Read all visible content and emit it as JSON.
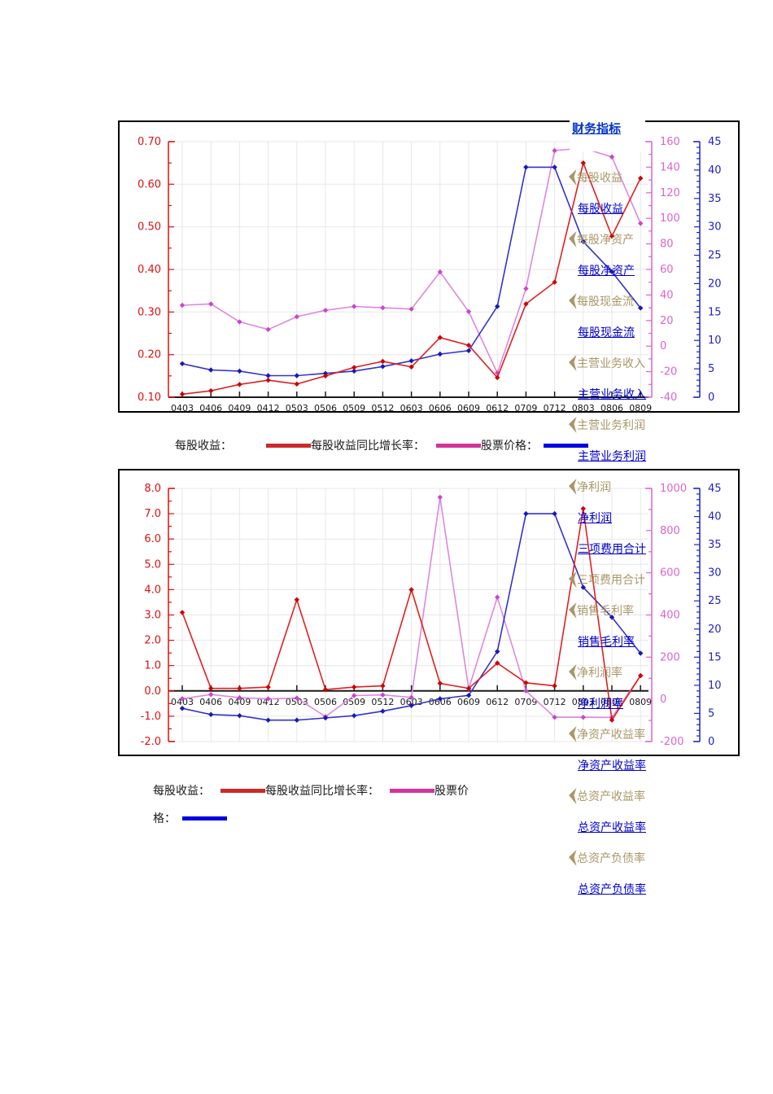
{
  "menu": {
    "title": "财务指标",
    "items": [
      {
        "label": "每股收益",
        "variant": "tan"
      },
      {
        "label": "每股收益",
        "variant": "link"
      },
      {
        "label": "每股净资产",
        "variant": "tan"
      },
      {
        "label": "每股净资产",
        "variant": "link"
      },
      {
        "label": "每股现金流",
        "variant": "tan"
      },
      {
        "label": "每股现金流",
        "variant": "link"
      },
      {
        "label": "主营业务收入",
        "variant": "tan"
      },
      {
        "label": "主营业务收入",
        "variant": "link"
      },
      {
        "label": "主营业务利润",
        "variant": "tan"
      },
      {
        "label": "主营业务利润",
        "variant": "link"
      },
      {
        "label": "净利润",
        "variant": "tan"
      },
      {
        "label": "净利润",
        "variant": "link"
      },
      {
        "label": "三项费用合计",
        "variant": "link"
      },
      {
        "label": "三项费用合计",
        "variant": "tan"
      },
      {
        "label": "销售毛利率",
        "variant": "tan"
      },
      {
        "label": "销售毛利率",
        "variant": "link"
      },
      {
        "label": "净利润率",
        "variant": "tan"
      },
      {
        "label": "净利润率",
        "variant": "link"
      },
      {
        "label": "净资产收益率",
        "variant": "tan"
      },
      {
        "label": "净资产收益率",
        "variant": "link"
      },
      {
        "label": "总资产收益率",
        "variant": "tan"
      },
      {
        "label": "总资产收益率",
        "variant": "link"
      },
      {
        "label": "总资产负债率",
        "variant": "tan"
      },
      {
        "label": "总资产负债率",
        "variant": "link"
      }
    ],
    "tan_color": "#a99767",
    "link_color": "#0000cc"
  },
  "legend1": {
    "segments": [
      {
        "t": "每股收益："
      },
      {
        "c": "#cc2929",
        "gap": 42
      },
      {
        "t": "每股收益同比增长率："
      },
      {
        "c": "#d4339c",
        "gap": 14
      },
      {
        "t": "股票价格："
      },
      {
        "c": "#0000e0",
        "gap": 7
      }
    ]
  },
  "legend2_line1": {
    "segments": [
      {
        "t": "每股收益："
      },
      {
        "c": "#cc2929",
        "gap": 13
      },
      {
        "t": "每股收益同比增长率："
      },
      {
        "c": "#d4339c",
        "gap": 13
      },
      {
        "t": "股票价"
      }
    ]
  },
  "legend2_line2": {
    "segments": [
      {
        "t": "格："
      },
      {
        "c": "#0000e0",
        "gap": 8
      }
    ]
  },
  "chart_data": [
    {
      "type": "line",
      "title": "",
      "grid": "#e7e7e7",
      "baseline": 0.1,
      "categories": [
        "0403",
        "0406",
        "0409",
        "0412",
        "0503",
        "0506",
        "0509",
        "0512",
        "0603",
        "0606",
        "0609",
        "0612",
        "0709",
        "0712",
        "0803",
        "0806",
        "0809"
      ],
      "axes": {
        "left": {
          "min": 0.1,
          "max": 0.7,
          "step": 0.1,
          "minor": 2,
          "decimals": 2,
          "color": "#dd1111",
          "label": "每股收益"
        },
        "pink": {
          "min": -40,
          "max": 160,
          "step": 20,
          "minor": 2,
          "decimals": 0,
          "color": "#d966cc",
          "label": "每股收益同比增长率"
        },
        "blue": {
          "min": 0,
          "max": 45,
          "step": 5,
          "minor": 5,
          "decimals": 0,
          "color": "#2222cc",
          "label": "股票价格"
        }
      },
      "series": [
        {
          "id": "growth",
          "name": "每股收益同比增长率",
          "axis": "pink",
          "color": "#dd88dd",
          "marker": "#cc44cc",
          "values": [
            32,
            33,
            19,
            13,
            23,
            28,
            31,
            30,
            29,
            58,
            27,
            -21,
            45,
            153,
            155,
            148,
            96
          ]
        },
        {
          "id": "price",
          "name": "股票价格",
          "axis": "blue",
          "color": "#3333cc",
          "marker": "#1818bb",
          "values": [
            5.9,
            4.8,
            4.6,
            3.8,
            3.8,
            4.2,
            4.6,
            5.4,
            6.4,
            7.6,
            8.2,
            16.0,
            40.5,
            40.5,
            27.4,
            22.1,
            15.7
          ]
        },
        {
          "id": "eps",
          "name": "每股收益",
          "axis": "left",
          "color": "#e02020",
          "marker": "#cc0000",
          "values": [
            0.107,
            0.115,
            0.13,
            0.14,
            0.131,
            0.15,
            0.17,
            0.184,
            0.171,
            0.24,
            0.222,
            0.146,
            0.319,
            0.37,
            0.65,
            0.478,
            0.614
          ]
        }
      ]
    },
    {
      "type": "line",
      "title": "",
      "grid": "#e7e7e7",
      "baseline": 0.0,
      "categories": [
        "0403",
        "0406",
        "0409",
        "0412",
        "0503",
        "0506",
        "0509",
        "0512",
        "0603",
        "0606",
        "0609",
        "0612",
        "0709",
        "0712",
        "0803",
        "0806",
        "0809"
      ],
      "axes": {
        "left": {
          "min": -2.0,
          "max": 8.0,
          "step": 1.0,
          "minor": 2,
          "decimals": 1,
          "color": "#dd1111",
          "label": "每股收益"
        },
        "pink": {
          "min": -200,
          "max": 1000,
          "step": 200,
          "minor": 2,
          "decimals": 0,
          "color": "#d966cc",
          "label": "每股收益同比增长率"
        },
        "blue": {
          "min": 0,
          "max": 45,
          "step": 5,
          "minor": 5,
          "decimals": 0,
          "color": "#2222cc",
          "label": "股票价格"
        }
      },
      "series": [
        {
          "id": "growth2",
          "name": "每股收益同比增长率",
          "axis": "pink",
          "color": "#dd88dd",
          "marker": "#cc44cc",
          "values": [
            3,
            23,
            8,
            2,
            6,
            -82,
            18,
            21,
            9,
            958,
            50,
            484,
            40,
            -85,
            -85,
            -86,
            113
          ]
        },
        {
          "id": "price2",
          "name": "股票价格",
          "axis": "blue",
          "color": "#3333cc",
          "marker": "#1818bb",
          "values": [
            5.9,
            4.8,
            4.6,
            3.8,
            3.8,
            4.2,
            4.6,
            5.4,
            6.4,
            7.6,
            8.2,
            16.0,
            40.5,
            40.5,
            27.4,
            22.1,
            15.7
          ]
        },
        {
          "id": "eps2",
          "name": "每股收益",
          "axis": "left",
          "color": "#e02020",
          "marker": "#cc0000",
          "values": [
            3.1,
            0.1,
            0.1,
            0.15,
            3.6,
            0.05,
            0.15,
            0.2,
            4.0,
            0.3,
            0.1,
            1.1,
            0.32,
            0.2,
            7.2,
            -1.15,
            0.6
          ]
        }
      ]
    }
  ]
}
